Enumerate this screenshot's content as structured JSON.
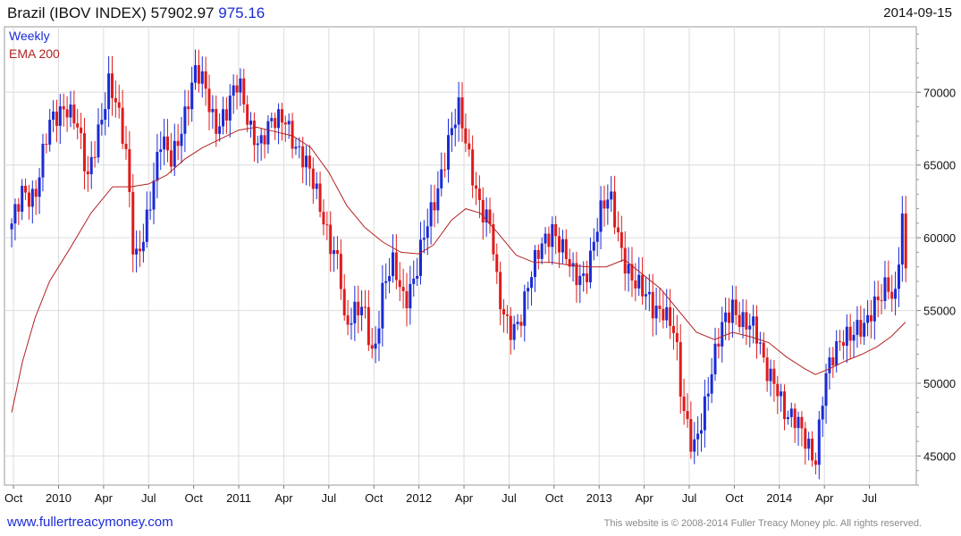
{
  "header": {
    "title": "Brazil (IBOV INDEX)",
    "last": "57902.97",
    "change": "975.16",
    "date": "2014-09-15"
  },
  "legend": {
    "weekly": "Weekly",
    "ema": "EMA 200"
  },
  "colors": {
    "up": "#1a2bd6",
    "down": "#e01b1b",
    "ema": "#b22222",
    "grid": "#dcdcdc"
  },
  "footer": {
    "site": "www.fullertreacymoney.com",
    "copyright": "This website is © 2008-2014 Fuller Treacy Money plc. All rights reserved."
  },
  "chart_data": {
    "type": "candlestick",
    "series_labels": [
      "Weekly",
      "EMA 200"
    ],
    "x_tick_labels": [
      "Oct",
      "2010",
      "Apr",
      "Jul",
      "Oct",
      "2011",
      "Apr",
      "Jul",
      "Oct",
      "2012",
      "Apr",
      "Jul",
      "Oct",
      "2013",
      "Apr",
      "Jul",
      "Oct",
      "2014",
      "Apr",
      "Jul"
    ],
    "y_ticks": [
      45000,
      50000,
      55000,
      60000,
      65000,
      70000
    ],
    "y_tick_labels": [
      "45000",
      "50000",
      "55000",
      "60000",
      "65000",
      "70000"
    ],
    "ylim": [
      43000,
      74500
    ],
    "grid": true,
    "close_points": [
      [
        2009.74,
        60500
      ],
      [
        2009.8,
        63500
      ],
      [
        2009.87,
        63000
      ],
      [
        2009.95,
        67500
      ],
      [
        2010.04,
        69500
      ],
      [
        2010.1,
        68000
      ],
      [
        2010.16,
        63500
      ],
      [
        2010.22,
        67500
      ],
      [
        2010.28,
        71000
      ],
      [
        2010.32,
        69000
      ],
      [
        2010.38,
        65000
      ],
      [
        2010.42,
        58500
      ],
      [
        2010.47,
        60500
      ],
      [
        2010.52,
        63000
      ],
      [
        2010.57,
        66500
      ],
      [
        2010.62,
        65500
      ],
      [
        2010.7,
        68500
      ],
      [
        2010.76,
        71000
      ],
      [
        2010.81,
        70500
      ],
      [
        2010.87,
        68000
      ],
      [
        2010.93,
        68500
      ],
      [
        2011.0,
        70500
      ],
      [
        2011.06,
        68000
      ],
      [
        2011.12,
        66500
      ],
      [
        2011.18,
        67500
      ],
      [
        2011.26,
        68500
      ],
      [
        2011.33,
        66000
      ],
      [
        2011.4,
        64000
      ],
      [
        2011.46,
        62000
      ],
      [
        2011.52,
        59500
      ],
      [
        2011.56,
        58000
      ],
      [
        2011.59,
        53000
      ],
      [
        2011.63,
        54500
      ],
      [
        2011.69,
        56000
      ],
      [
        2011.75,
        51500
      ],
      [
        2011.8,
        56000
      ],
      [
        2011.86,
        58500
      ],
      [
        2011.92,
        56000
      ],
      [
        2011.98,
        57000
      ],
      [
        2012.04,
        60500
      ],
      [
        2012.1,
        63500
      ],
      [
        2012.16,
        66500
      ],
      [
        2012.22,
        68500
      ],
      [
        2012.28,
        65500
      ],
      [
        2012.34,
        62500
      ],
      [
        2012.4,
        60500
      ],
      [
        2012.44,
        55500
      ],
      [
        2012.5,
        54000
      ],
      [
        2012.56,
        54500
      ],
      [
        2012.62,
        57000
      ],
      [
        2012.68,
        59500
      ],
      [
        2012.74,
        61000
      ],
      [
        2012.8,
        59000
      ],
      [
        2012.86,
        57000
      ],
      [
        2012.92,
        57500
      ],
      [
        2013.0,
        61500
      ],
      [
        2013.06,
        62500
      ],
      [
        2013.12,
        59500
      ],
      [
        2013.18,
        57500
      ],
      [
        2013.24,
        56000
      ],
      [
        2013.3,
        55000
      ],
      [
        2013.36,
        55500
      ],
      [
        2013.42,
        53500
      ],
      [
        2013.46,
        48000
      ],
      [
        2013.52,
        45500
      ],
      [
        2013.56,
        47500
      ],
      [
        2013.62,
        50500
      ],
      [
        2013.68,
        53500
      ],
      [
        2013.74,
        55500
      ],
      [
        2013.8,
        54500
      ],
      [
        2013.86,
        53500
      ],
      [
        2013.92,
        51000
      ],
      [
        2013.98,
        50500
      ],
      [
        2014.04,
        47500
      ],
      [
        2014.1,
        47000
      ],
      [
        2014.16,
        46000
      ],
      [
        2014.2,
        45000
      ],
      [
        2014.25,
        50000
      ],
      [
        2014.3,
        51500
      ],
      [
        2014.36,
        53500
      ],
      [
        2014.42,
        54000
      ],
      [
        2014.48,
        53500
      ],
      [
        2014.54,
        55500
      ],
      [
        2014.6,
        57500
      ],
      [
        2014.64,
        55500
      ],
      [
        2014.68,
        61000
      ],
      [
        2014.7,
        60500
      ],
      [
        2014.72,
        57900
      ]
    ],
    "ema_points": [
      [
        2009.74,
        48000
      ],
      [
        2009.8,
        51500
      ],
      [
        2009.87,
        54500
      ],
      [
        2009.95,
        57000
      ],
      [
        2010.06,
        59200
      ],
      [
        2010.18,
        61700
      ],
      [
        2010.3,
        63500
      ],
      [
        2010.4,
        63500
      ],
      [
        2010.5,
        63700
      ],
      [
        2010.6,
        64300
      ],
      [
        2010.7,
        65400
      ],
      [
        2010.8,
        66200
      ],
      [
        2010.9,
        66800
      ],
      [
        2011.0,
        67400
      ],
      [
        2011.1,
        67600
      ],
      [
        2011.2,
        67300
      ],
      [
        2011.3,
        67000
      ],
      [
        2011.4,
        66200
      ],
      [
        2011.5,
        64500
      ],
      [
        2011.6,
        62200
      ],
      [
        2011.7,
        60700
      ],
      [
        2011.8,
        59700
      ],
      [
        2011.9,
        59000
      ],
      [
        2012.0,
        58900
      ],
      [
        2012.08,
        59500
      ],
      [
        2012.18,
        61200
      ],
      [
        2012.26,
        62000
      ],
      [
        2012.34,
        61700
      ],
      [
        2012.44,
        60300
      ],
      [
        2012.54,
        58800
      ],
      [
        2012.64,
        58300
      ],
      [
        2012.74,
        58300
      ],
      [
        2012.84,
        58100
      ],
      [
        2012.94,
        58000
      ],
      [
        2013.04,
        58000
      ],
      [
        2013.14,
        58500
      ],
      [
        2013.24,
        57500
      ],
      [
        2013.34,
        56500
      ],
      [
        2013.44,
        55000
      ],
      [
        2013.54,
        53500
      ],
      [
        2013.64,
        53000
      ],
      [
        2013.74,
        53500
      ],
      [
        2013.84,
        53200
      ],
      [
        2013.94,
        52800
      ],
      [
        2014.04,
        51800
      ],
      [
        2014.14,
        51000
      ],
      [
        2014.2,
        50600
      ],
      [
        2014.28,
        51000
      ],
      [
        2014.36,
        51500
      ],
      [
        2014.46,
        52000
      ],
      [
        2014.54,
        52500
      ],
      [
        2014.62,
        53200
      ],
      [
        2014.7,
        54200
      ]
    ]
  }
}
